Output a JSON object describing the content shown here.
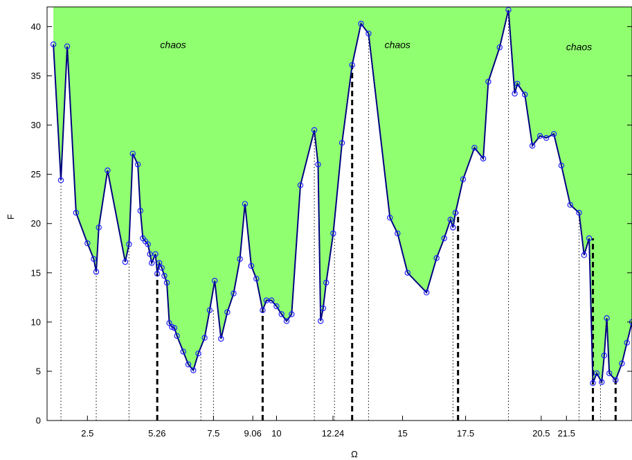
{
  "chart_data": {
    "type": "area",
    "title": "",
    "xlabel": "Ω",
    "ylabel": "F",
    "xlim": [
      0.9,
      24.1
    ],
    "ylim": [
      0,
      42
    ],
    "x_ticks": [
      {
        "value": 2.5,
        "label": "2.5"
      },
      {
        "value": 5.26,
        "label": "5.26"
      },
      {
        "value": 7.5,
        "label": "7.5"
      },
      {
        "value": 9.06,
        "label": "9.06"
      },
      {
        "value": 10,
        "label": "10"
      },
      {
        "value": 12.24,
        "label": "12.24"
      },
      {
        "value": 15,
        "label": "15"
      },
      {
        "value": 17.5,
        "label": "17.5"
      },
      {
        "value": 20.5,
        "label": "20.5"
      },
      {
        "value": 21.5,
        "label": "21.5"
      }
    ],
    "y_ticks": [
      {
        "value": 0,
        "label": "0"
      },
      {
        "value": 5,
        "label": "5"
      },
      {
        "value": 10,
        "label": "10"
      },
      {
        "value": 15,
        "label": "15"
      },
      {
        "value": 20,
        "label": "20"
      },
      {
        "value": 25,
        "label": "25"
      },
      {
        "value": 30,
        "label": "30"
      },
      {
        "value": 35,
        "label": "35"
      },
      {
        "value": 40,
        "label": "40"
      }
    ],
    "fill_color": "#90ff70",
    "line_color": "#00007f",
    "marker_color": "#1c1cff",
    "region_labels": [
      {
        "text": "chaos",
        "x": 5.9,
        "y": 37.8
      },
      {
        "text": "chaos",
        "x": 14.8,
        "y": 37.8
      },
      {
        "text": "chaos",
        "x": 22.0,
        "y": 37.6
      }
    ],
    "points": [
      [
        1.15,
        38.2
      ],
      [
        1.45,
        24.4
      ],
      [
        1.7,
        38.0
      ],
      [
        2.05,
        21.1
      ],
      [
        2.5,
        18.0
      ],
      [
        2.75,
        16.4
      ],
      [
        2.85,
        15.1
      ],
      [
        2.95,
        19.6
      ],
      [
        3.3,
        25.4
      ],
      [
        4.0,
        16.1
      ],
      [
        4.15,
        17.9
      ],
      [
        4.3,
        27.1
      ],
      [
        4.5,
        26.0
      ],
      [
        4.6,
        21.3
      ],
      [
        4.7,
        18.5
      ],
      [
        4.8,
        18.2
      ],
      [
        4.9,
        17.9
      ],
      [
        4.98,
        16.9
      ],
      [
        5.05,
        16.0
      ],
      [
        5.2,
        16.9
      ],
      [
        5.27,
        14.9
      ],
      [
        5.35,
        16.0
      ],
      [
        5.45,
        15.5
      ],
      [
        5.55,
        14.7
      ],
      [
        5.65,
        14.0
      ],
      [
        5.75,
        9.9
      ],
      [
        5.85,
        9.5
      ],
      [
        5.95,
        9.4
      ],
      [
        6.05,
        8.6
      ],
      [
        6.3,
        7.0
      ],
      [
        6.5,
        5.7
      ],
      [
        6.7,
        5.1
      ],
      [
        6.9,
        6.8
      ],
      [
        7.15,
        8.4
      ],
      [
        7.35,
        11.2
      ],
      [
        7.55,
        14.2
      ],
      [
        7.8,
        8.3
      ],
      [
        8.05,
        11.0
      ],
      [
        8.3,
        12.9
      ],
      [
        8.55,
        16.4
      ],
      [
        8.75,
        22.0
      ],
      [
        9.0,
        15.7
      ],
      [
        9.2,
        14.4
      ],
      [
        9.45,
        11.2
      ],
      [
        9.6,
        12.2
      ],
      [
        9.8,
        12.2
      ],
      [
        10.0,
        11.6
      ],
      [
        10.2,
        10.8
      ],
      [
        10.4,
        10.1
      ],
      [
        10.6,
        10.8
      ],
      [
        10.95,
        23.9
      ],
      [
        11.5,
        29.5
      ],
      [
        11.65,
        26.0
      ],
      [
        11.75,
        10.1
      ],
      [
        11.85,
        11.4
      ],
      [
        11.97,
        14.0
      ],
      [
        12.25,
        19.0
      ],
      [
        12.6,
        28.2
      ],
      [
        13.0,
        36.1
      ],
      [
        13.35,
        40.3
      ],
      [
        13.65,
        39.3
      ],
      [
        14.5,
        20.6
      ],
      [
        14.8,
        19.0
      ],
      [
        15.2,
        15.0
      ],
      [
        15.95,
        13.0
      ],
      [
        16.35,
        16.5
      ],
      [
        16.65,
        18.5
      ],
      [
        16.9,
        20.4
      ],
      [
        17.0,
        19.6
      ],
      [
        17.1,
        21.1
      ],
      [
        17.4,
        24.5
      ],
      [
        17.85,
        27.7
      ],
      [
        18.2,
        26.6
      ],
      [
        18.4,
        34.4
      ],
      [
        18.85,
        37.9
      ],
      [
        19.2,
        41.7
      ],
      [
        19.45,
        33.2
      ],
      [
        19.55,
        34.2
      ],
      [
        19.85,
        33.1
      ],
      [
        20.15,
        27.9
      ],
      [
        20.45,
        28.9
      ],
      [
        20.7,
        28.7
      ],
      [
        21.0,
        29.1
      ],
      [
        21.3,
        25.9
      ],
      [
        21.65,
        21.9
      ],
      [
        22.0,
        21.1
      ],
      [
        22.2,
        16.8
      ],
      [
        22.4,
        18.5
      ],
      [
        22.55,
        3.8
      ],
      [
        22.7,
        4.8
      ],
      [
        22.9,
        3.9
      ],
      [
        23.0,
        6.6
      ],
      [
        23.1,
        10.4
      ],
      [
        23.2,
        4.8
      ],
      [
        23.45,
        4.1
      ],
      [
        23.7,
        5.8
      ],
      [
        23.9,
        7.9
      ],
      [
        24.1,
        10.0
      ]
    ],
    "dotted_lines": [
      {
        "x": 1.45,
        "y_top": 24.4
      },
      {
        "x": 2.85,
        "y_top": 15.1
      },
      {
        "x": 4.15,
        "y_top": 17.9
      },
      {
        "x": 7.0,
        "y_top": 6.8
      },
      {
        "x": 7.5,
        "y_top": 11.2
      },
      {
        "x": 11.5,
        "y_top": 29.5
      },
      {
        "x": 12.3,
        "y_top": 19.0
      },
      {
        "x": 13.65,
        "y_top": 39.3
      },
      {
        "x": 17.0,
        "y_top": 19.6
      },
      {
        "x": 19.2,
        "y_top": 41.7
      },
      {
        "x": 22.0,
        "y_top": 21.1
      },
      {
        "x": 22.85,
        "y_top": 3.9
      }
    ],
    "dashed_lines": [
      {
        "x": 5.27,
        "y_top": 14.9
      },
      {
        "x": 9.45,
        "y_top": 11.2
      },
      {
        "x": 13.0,
        "y_top": 36.1
      },
      {
        "x": 17.2,
        "y_top": 21.1
      },
      {
        "x": 22.55,
        "y_top": 18.5
      },
      {
        "x": 23.45,
        "y_top": 4.1
      }
    ]
  }
}
